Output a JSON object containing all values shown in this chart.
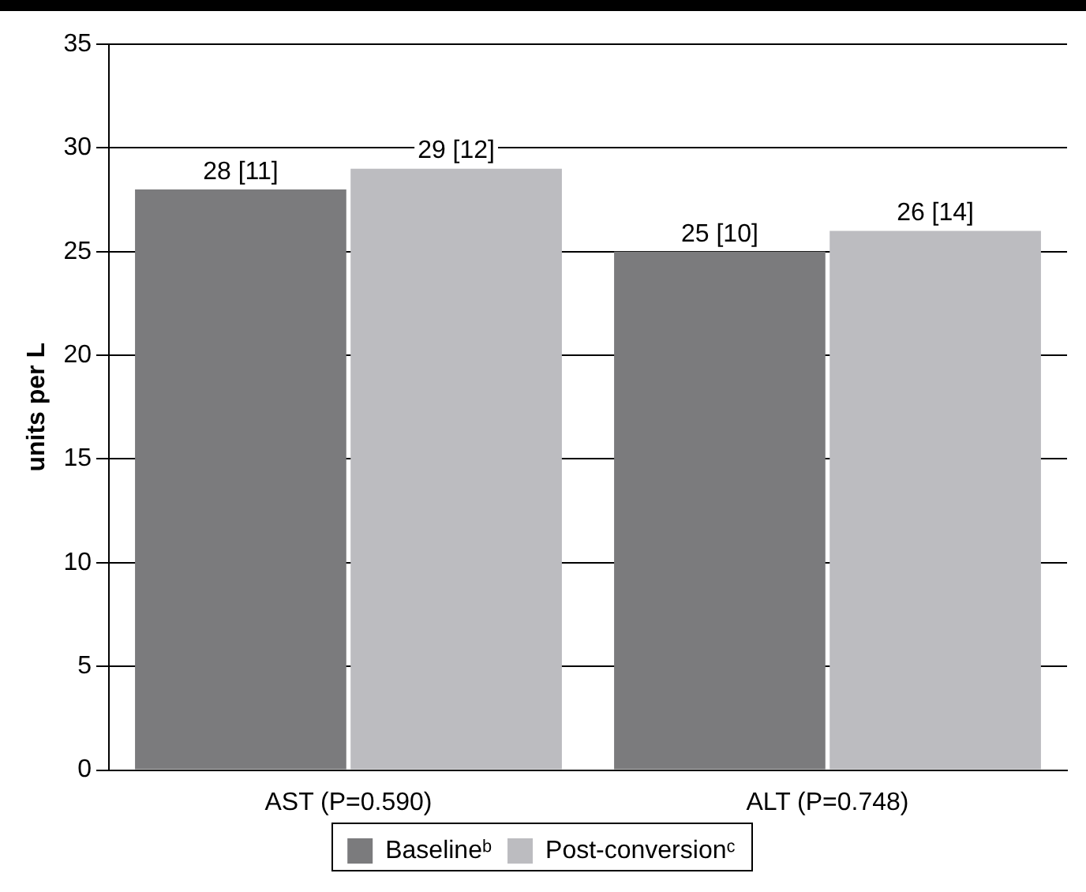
{
  "chart_data": {
    "type": "bar",
    "ylabel": "units per L",
    "categories": [
      "AST (P=0.590)",
      "ALT (P=0.748)"
    ],
    "series": [
      {
        "name": "Baselineᵇ",
        "color": "#7b7b7d",
        "values": [
          28,
          25
        ],
        "value_labels": [
          "28 [11]",
          "25 [10]"
        ]
      },
      {
        "name": "Post-conversionᶜ",
        "color": "#bcbcc0",
        "values": [
          29,
          26
        ],
        "value_labels": [
          "29 [12]",
          "26 [14]"
        ]
      }
    ],
    "ylim": [
      0,
      35
    ],
    "yticks": [
      0,
      5,
      10,
      15,
      20,
      25,
      30,
      35
    ],
    "grid": "y",
    "legend": "bottom"
  }
}
